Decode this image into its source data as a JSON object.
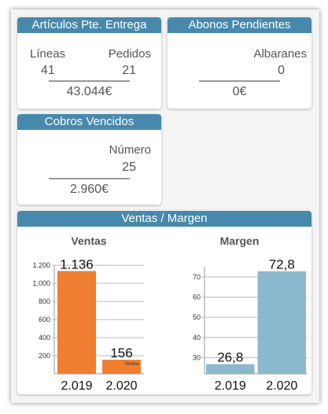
{
  "articulos": {
    "title": "Artículos Pte. Entrega",
    "lineas_label": "Líneas",
    "lineas_value": "41",
    "pedidos_label": "Pedidos",
    "pedidos_value": "21",
    "total": "43.044€"
  },
  "abonos": {
    "title": "Abonos Pendientes",
    "albaranes_label": "Albaranes",
    "albaranes_value": "0",
    "total": "0€"
  },
  "cobros": {
    "title": "Cobros Vencidos",
    "numero_label": "Número",
    "numero_value": "25",
    "total": "2.960€"
  },
  "ventas_margen": {
    "title": "Ventas / Margen"
  },
  "chart_data": [
    {
      "type": "bar",
      "title": "Ventas",
      "categories": [
        "2.019",
        "2.020"
      ],
      "category_labels": [
        "2.019",
        "2.020"
      ],
      "values": [
        1136,
        156
      ],
      "value_labels": [
        "1.136",
        "156"
      ],
      "ylim": [
        0,
        1200
      ],
      "yticks": [
        200,
        400,
        600,
        800,
        1000,
        1200
      ],
      "ytick_labels": [
        "200",
        "400",
        "600",
        "800",
        "1.000",
        "1.200"
      ],
      "series_tag": "Ventas",
      "color": "#f07f31",
      "grid": true
    },
    {
      "type": "bar",
      "title": "Margen",
      "categories": [
        "2.019",
        "2.020"
      ],
      "category_labels": [
        "2.019",
        "2.020"
      ],
      "values": [
        26.8,
        72.8
      ],
      "value_labels": [
        "26,8",
        "72,8"
      ],
      "ylim": [
        22,
        75
      ],
      "yticks": [
        30,
        40,
        50,
        60,
        70
      ],
      "ytick_labels": [
        "30",
        "40",
        "50",
        "60",
        "70"
      ],
      "color": "#8bb8cf",
      "grid": true
    }
  ]
}
